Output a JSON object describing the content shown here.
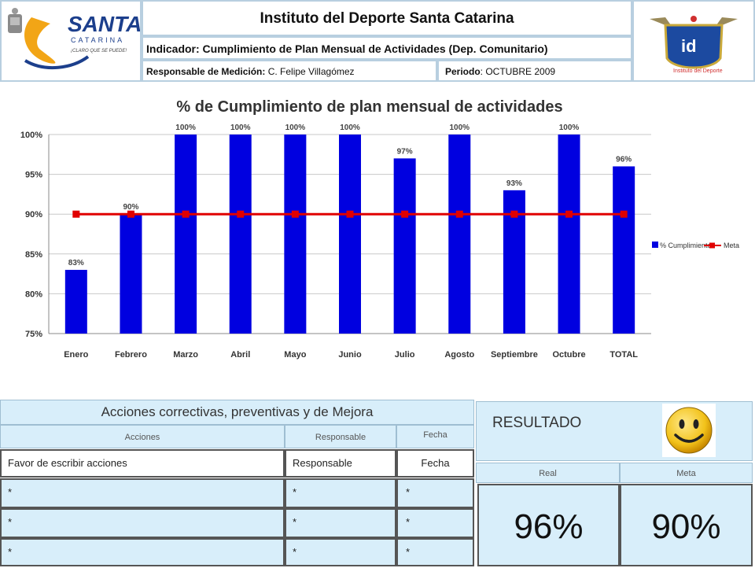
{
  "header": {
    "institute": "Instituto del Deporte Santa Catarina",
    "indicator": "Indicador: Cumplimiento de Plan Mensual de Actividades (Dep. Comunitario)",
    "responsible_label": "Responsable de Medición:",
    "responsible_value": "C. Felipe Villagómez",
    "period_label": "Periodo",
    "period_value": ": OCTUBRE 2009",
    "logo_left_line1": "SANTA",
    "logo_left_line2": "CATARINA",
    "logo_left_slogan": "¡CLARO QUE SE PUEDE!",
    "logo_right_text": "id",
    "logo_right_caption": "Instituto del Deporte"
  },
  "chart_data": {
    "type": "bar",
    "title": "% de Cumplimiento de plan mensual de actividades",
    "categories": [
      "Enero",
      "Febrero",
      "Marzo",
      "Abril",
      "Mayo",
      "Junio",
      "Julio",
      "Agosto",
      "Septiembre",
      "Octubre",
      "TOTAL"
    ],
    "series": [
      {
        "name": "% Cumplimiento",
        "type": "bar",
        "values": [
          83,
          90,
          100,
          100,
          100,
          100,
          97,
          100,
          93,
          100,
          96
        ],
        "color": "#0000e0"
      },
      {
        "name": "Meta",
        "type": "line",
        "values": [
          90,
          90,
          90,
          90,
          90,
          90,
          90,
          90,
          90,
          90,
          90
        ],
        "color": "#e00000"
      }
    ],
    "data_labels": [
      "83%",
      "90%",
      "100%",
      "100%",
      "100%",
      "100%",
      "97%",
      "100%",
      "93%",
      "100%",
      "96%"
    ],
    "y_ticks": [
      "75%",
      "80%",
      "85%",
      "90%",
      "95%",
      "100%"
    ],
    "ylim": [
      75,
      100
    ],
    "grid": true,
    "legend_position": "right"
  },
  "actions": {
    "title": "Acciones correctivas, preventivas y de Mejora",
    "col_acciones": "Acciones",
    "col_responsable": "Responsable",
    "col_fecha": "Fecha",
    "first_row": [
      "Favor de escribir acciones",
      "Responsable",
      "Fecha"
    ],
    "rows": [
      [
        "*",
        "*",
        "*"
      ],
      [
        "*",
        "*",
        "*"
      ],
      [
        "*",
        "*",
        "*"
      ]
    ]
  },
  "result": {
    "title": "RESULTADO",
    "real_label": "Real",
    "meta_label": "Meta",
    "real_value": "96%",
    "meta_value": "90%"
  }
}
